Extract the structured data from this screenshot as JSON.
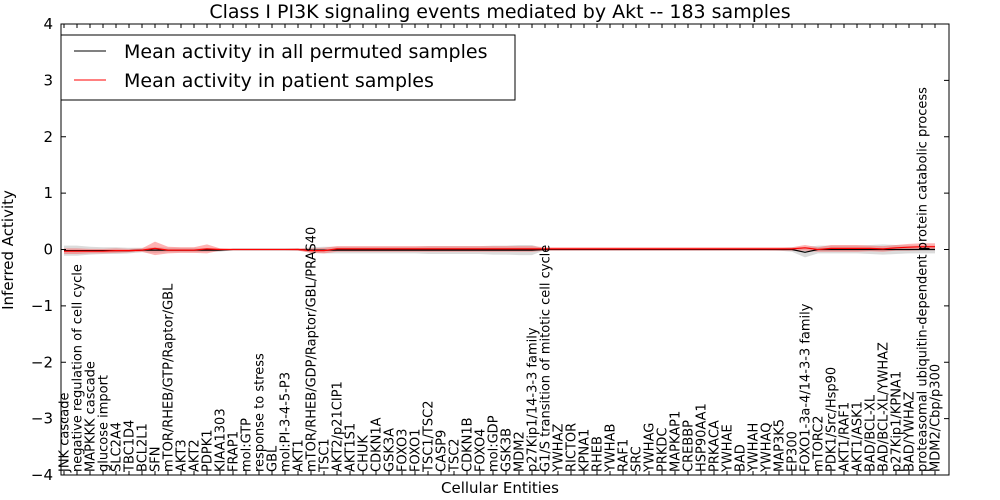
{
  "chart_data": {
    "type": "line",
    "title": "Class I PI3K signaling events mediated by Akt -- 183 samples",
    "xlabel": "Cellular Entities",
    "ylabel": "Inferred Activity",
    "ylim": [
      -4,
      4
    ],
    "yticks": [
      -4,
      -3,
      -2,
      -1,
      0,
      1,
      2,
      3,
      4
    ],
    "ytick_labels": [
      "−4",
      "−3",
      "−2",
      "−1",
      "0",
      "1",
      "2",
      "3",
      "4"
    ],
    "grid": false,
    "legend_position": "top-left",
    "categories": [
      "JNK cascade",
      "negative regulation of cell cycle",
      "MAPKKK cascade",
      "glucose import",
      "SLC2A4",
      "TBC1D4",
      "BCL2L1",
      "SFN",
      "mTOR/RHEB/GTP/Raptor/GBL",
      "AKT3",
      "AKT2",
      "PDPK1",
      "KIAA1303",
      "FRAP1",
      "mol:GTP",
      "response to stress",
      "GBL",
      "mol:PI-3-4-5-P3",
      "AKT1",
      "mTOR/RHEB/GDP/Raptor/GBL/PRAS40",
      "TSC1",
      "AKT2/p21CIP1",
      "AKT1S1",
      "CHUK",
      "CDKN1A",
      "GSK3A",
      "FOXO3",
      "FOXO1",
      "TSC1/TSC2",
      "CASP9",
      "TSC2",
      "CDKN1B",
      "FOXO4",
      "mol:GDP",
      "GSK3B",
      "MDM2",
      "p27Kip1/14-3-3 family",
      "G1/S transition of mitotic cell cycle",
      "YWHAZ",
      "RICTOR",
      "KPNA1",
      "RHEB",
      "YWHAB",
      "RAF1",
      "SRC",
      "YWHAG",
      "PRKDC",
      "MAPKAP1",
      "CREBBP",
      "HSP90AA1",
      "PRKACA",
      "YWHAE",
      "BAD",
      "YWHAH",
      "YWHAQ",
      "MAP3K5",
      "EP300",
      "FOXO1-3a-4/14-3-3 family",
      "mTORC2",
      "PDK1/Src/Hsp90",
      "AKT1/RAF1",
      "AKT1/ASK1",
      "BAD/BCL-XL",
      "BAD/BCL-XL/YWHAZ",
      "p27Kip1/KPNA1",
      "BAD/YWHAZ",
      "proteasomal ubiquitin-dependent protein catabolic process",
      "MDM2/Cbp/p300"
    ],
    "series": [
      {
        "name": "Mean activity in all permuted samples",
        "color": "#000000",
        "band_color": "#999999",
        "values": [
          -0.02,
          -0.02,
          -0.02,
          -0.02,
          -0.02,
          -0.02,
          -0.01,
          -0.01,
          -0.01,
          -0.01,
          -0.01,
          -0.01,
          -0.01,
          0,
          0,
          0,
          0,
          0,
          0,
          -0.01,
          -0.01,
          -0.01,
          -0.01,
          -0.01,
          -0.01,
          -0.01,
          -0.01,
          -0.01,
          -0.01,
          -0.01,
          -0.01,
          -0.01,
          -0.01,
          -0.01,
          -0.01,
          -0.01,
          -0.01,
          0,
          0,
          0,
          0,
          0,
          0,
          0,
          0,
          0,
          0,
          0,
          0,
          0,
          0,
          0,
          0,
          0,
          0,
          0,
          0,
          -0.05,
          0,
          0,
          0,
          0,
          0,
          0,
          0,
          0,
          0,
          0
        ],
        "band": [
          0.09,
          0.09,
          0.07,
          0.06,
          0.06,
          0.05,
          0.04,
          0.05,
          0.04,
          0.04,
          0.04,
          0.03,
          0.03,
          0.01,
          0.01,
          0.01,
          0.01,
          0.01,
          0.01,
          0.05,
          0.06,
          0.06,
          0.06,
          0.06,
          0.06,
          0.06,
          0.06,
          0.06,
          0.07,
          0.07,
          0.07,
          0.07,
          0.07,
          0.08,
          0.08,
          0.09,
          0.09,
          0.01,
          0.01,
          0.01,
          0.01,
          0.01,
          0.01,
          0.01,
          0.01,
          0.01,
          0.01,
          0.01,
          0.01,
          0.01,
          0.01,
          0.01,
          0.01,
          0.01,
          0.01,
          0.02,
          0.04,
          0.09,
          0.07,
          0.07,
          0.07,
          0.07,
          0.08,
          0.09,
          0.08,
          0.07,
          0.07,
          0.07
        ]
      },
      {
        "name": "Mean activity in patient samples",
        "color": "#ff0000",
        "band_color": "#ff5555",
        "values": [
          -0.03,
          -0.03,
          -0.03,
          -0.03,
          -0.02,
          -0.02,
          -0.01,
          0.02,
          -0.01,
          -0.01,
          -0.01,
          0.01,
          0,
          0,
          0,
          0,
          0,
          0,
          0,
          -0.02,
          -0.02,
          0.01,
          0.01,
          0.01,
          0.01,
          0.01,
          0.01,
          0.01,
          0.01,
          0.01,
          0.01,
          0.01,
          0.01,
          0.01,
          0.01,
          0.01,
          0.01,
          0.01,
          0.01,
          0.01,
          0.01,
          0.01,
          0.01,
          0.01,
          0.01,
          0.01,
          0.01,
          0.01,
          0.01,
          0.01,
          0.01,
          0.01,
          0.01,
          0.01,
          0.01,
          0.01,
          0.01,
          0.03,
          0,
          0.02,
          0.02,
          0.02,
          0.02,
          0.01,
          0.03,
          0.04,
          0.05,
          0.05
        ],
        "band": [
          0.05,
          0.05,
          0.04,
          0.04,
          0.04,
          0.03,
          0.03,
          0.12,
          0.06,
          0.05,
          0.05,
          0.08,
          0.02,
          0.01,
          0.01,
          0.01,
          0.01,
          0.01,
          0.02,
          0.04,
          0.05,
          0.05,
          0.05,
          0.05,
          0.05,
          0.05,
          0.05,
          0.05,
          0.05,
          0.05,
          0.05,
          0.05,
          0.05,
          0.05,
          0.05,
          0.05,
          0.05,
          0.03,
          0.03,
          0.03,
          0.03,
          0.03,
          0.03,
          0.03,
          0.03,
          0.03,
          0.03,
          0.03,
          0.03,
          0.03,
          0.03,
          0.03,
          0.03,
          0.03,
          0.03,
          0.03,
          0.03,
          0.05,
          0.04,
          0.06,
          0.06,
          0.06,
          0.05,
          0.05,
          0.05,
          0.06,
          0.06,
          0.06
        ]
      }
    ]
  }
}
